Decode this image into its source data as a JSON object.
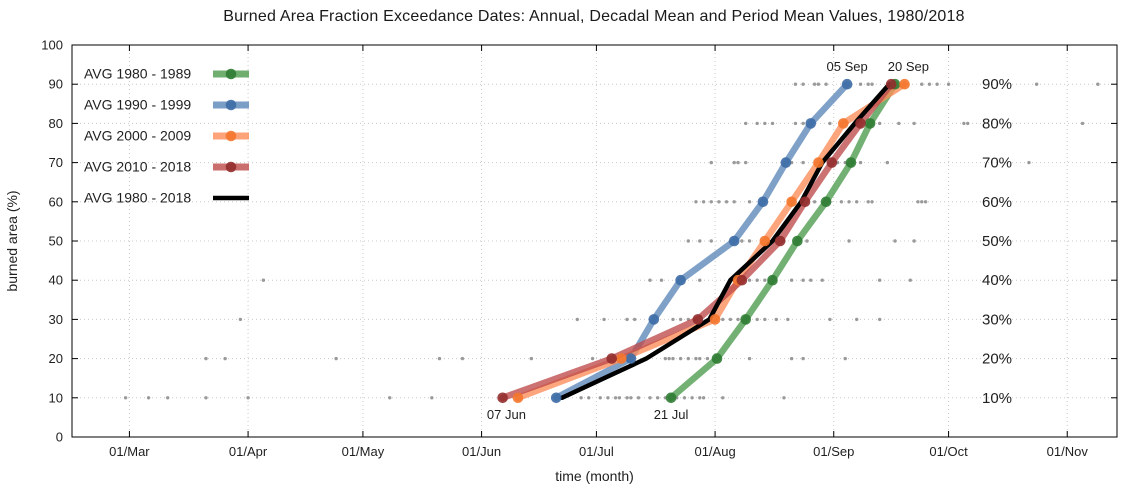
{
  "chart_data": {
    "type": "line",
    "title": "Burned Area Fraction Exceedance Dates: Annual, Decadal Mean and Period Mean Values, 1980/2018",
    "xlabel": "time (month)",
    "ylabel": "burned area (%)",
    "ylim": [
      0,
      100
    ],
    "y_ticks": [
      0,
      10,
      20,
      30,
      40,
      50,
      60,
      70,
      80,
      90,
      100
    ],
    "x_axis": {
      "unit": "day_of_year",
      "range": [
        45,
        318
      ],
      "ticks": [
        {
          "day": 60,
          "label": "01/Mar"
        },
        {
          "day": 91,
          "label": "01/Apr"
        },
        {
          "day": 121,
          "label": "01/May"
        },
        {
          "day": 152,
          "label": "01/Jun"
        },
        {
          "day": 182,
          "label": "01/Jul"
        },
        {
          "day": 213,
          "label": "01/Aug"
        },
        {
          "day": 244,
          "label": "01/Sep"
        },
        {
          "day": 274,
          "label": "01/Oct"
        },
        {
          "day": 305,
          "label": "01/Nov"
        }
      ]
    },
    "levels": [
      10,
      20,
      30,
      40,
      50,
      60,
      70,
      80,
      90
    ],
    "right_percent_labels": [
      {
        "level": 10,
        "label": "10%"
      },
      {
        "level": 20,
        "label": "20%"
      },
      {
        "level": 30,
        "label": "30%"
      },
      {
        "level": 40,
        "label": "40%"
      },
      {
        "level": 50,
        "label": "50%"
      },
      {
        "level": 60,
        "label": "60%"
      },
      {
        "level": 70,
        "label": "70%"
      },
      {
        "level": 80,
        "label": "80%"
      },
      {
        "level": 90,
        "label": "90%"
      }
    ],
    "legend": {
      "position": "top-left"
    },
    "grid": {
      "color": "#c9c9c9",
      "style": "dotted"
    },
    "series": [
      {
        "name": "AVG 1980 - 1989",
        "color": "#4C9A4C",
        "marker_color": "#2F7C33",
        "style": "marker",
        "days": [
          201.5,
          213.5,
          221,
          228,
          234.5,
          242,
          248.5,
          253.5,
          260
        ],
        "dates": [
          "21 Jul",
          "02 Aug",
          "09 Aug",
          "16 Aug",
          "22 Aug",
          "30 Aug",
          "05 Sep",
          "10 Sep",
          "17 Sep"
        ]
      },
      {
        "name": "AVG 1990 - 1999",
        "color": "#5B87B8",
        "marker_color": "#3D6CA5",
        "style": "marker",
        "days": [
          171.5,
          191,
          197,
          204,
          218,
          225.5,
          231.5,
          238,
          247.5
        ],
        "dates": [
          "20 Jun",
          "10 Jul",
          "16 Jul",
          "23 Jul",
          "06 Aug",
          "13 Aug",
          "19 Aug",
          "26 Aug",
          "05 Sep"
        ]
      },
      {
        "name": "AVG 2000 - 2009",
        "color": "#FC8D59",
        "marker_color": "#F4772E",
        "style": "marker",
        "days": [
          161.5,
          188.5,
          213,
          219,
          226,
          233,
          240,
          246.5,
          262.5
        ],
        "dates": [
          "10 Jun",
          "07 Jul",
          "01 Aug",
          "07 Aug",
          "14 Aug",
          "21 Aug",
          "28 Aug",
          "03 Sep",
          "20 Sep"
        ]
      },
      {
        "name": "AVG 2010 - 2018",
        "color": "#BE4A4A",
        "marker_color": "#942D2D",
        "style": "marker",
        "days": [
          157.5,
          186,
          208.5,
          220,
          230,
          236.5,
          243.5,
          251,
          259
        ],
        "dates": [
          "07 Jun",
          "05 Jul",
          "27 Jul",
          "08 Aug",
          "18 Aug",
          "24 Aug",
          "31 Aug",
          "08 Sep",
          "16 Sep"
        ]
      },
      {
        "name": "AVG 1980 - 2018",
        "color": "#000000",
        "marker_color": "#000000",
        "style": "plain",
        "days": [
          173,
          195,
          211.5,
          217,
          228,
          235.5,
          241,
          249.5,
          258.5
        ],
        "dates": [
          "22 Jun",
          "14 Jul",
          "30 Jul",
          "05 Aug",
          "16 Aug",
          "23 Aug",
          "29 Aug",
          "06 Sep",
          "15 Sep"
        ]
      }
    ],
    "annual_scatter": {
      "color": "#8a8a8a",
      "points_by_level": {
        "10": [
          59,
          65,
          70,
          80,
          91,
          128,
          139,
          178,
          180,
          183,
          185,
          187,
          188,
          190,
          191,
          193,
          196,
          198,
          200,
          203,
          205,
          207,
          209,
          210,
          215,
          231
        ],
        "20": [
          80,
          85,
          114,
          141,
          147,
          165,
          181,
          200,
          201,
          202,
          204,
          206,
          208,
          209,
          211,
          222,
          233,
          236,
          247
        ],
        "30": [
          89,
          177,
          184,
          190,
          192,
          202,
          204,
          206,
          208,
          215,
          217,
          219,
          224,
          226,
          229,
          232,
          243,
          250,
          256
        ],
        "40": [
          95,
          196,
          199,
          209,
          222,
          224,
          226,
          233,
          236,
          238,
          241,
          256,
          264
        ],
        "50": [
          206,
          209,
          212,
          220,
          222,
          228,
          231,
          237,
          248,
          260,
          265
        ],
        "60": [
          208,
          210,
          212,
          214,
          216,
          218,
          222,
          239,
          243,
          246,
          248,
          250,
          253,
          254,
          266,
          267,
          268
        ],
        "70": [
          212,
          218,
          219,
          221,
          233,
          236,
          245,
          247,
          249,
          251,
          258,
          295
        ],
        "80": [
          221,
          224,
          226,
          228,
          234,
          236,
          243,
          256,
          261,
          265,
          278,
          279,
          309
        ],
        "90": [
          234,
          236,
          239,
          240,
          242,
          251,
          253,
          254,
          267,
          269,
          271,
          274,
          297,
          313
        ]
      }
    },
    "annotations": [
      {
        "text": "05 Sep",
        "day": 247.5,
        "level": 90,
        "placement": "above"
      },
      {
        "text": "20 Sep",
        "day": 263.5,
        "level": 90,
        "placement": "above"
      },
      {
        "text": "07 Jun",
        "day": 158.5,
        "level": 10,
        "placement": "below"
      },
      {
        "text": "21 Jul",
        "day": 201.5,
        "level": 10,
        "placement": "below"
      }
    ]
  }
}
